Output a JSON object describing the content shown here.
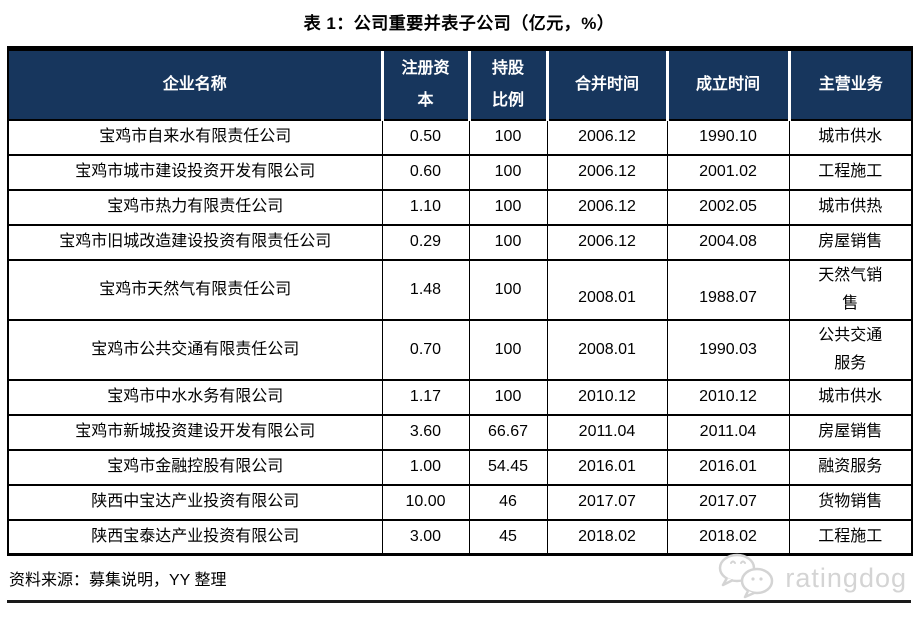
{
  "title": "表 1：公司重要并表子公司（亿元，%）",
  "table": {
    "columns": [
      "企业名称",
      "注册资\n本",
      "持股\n比例",
      "合并时间",
      "成立时间",
      "主营业务"
    ],
    "rows": [
      [
        "宝鸡市自来水有限责任公司",
        "0.50",
        "100",
        "2006.12",
        "1990.10",
        "城市供水"
      ],
      [
        "宝鸡市城市建设投资开发有限公司",
        "0.60",
        "100",
        "2006.12",
        "2001.02",
        "工程施工"
      ],
      [
        "宝鸡市热力有限责任公司",
        "1.10",
        "100",
        "2006.12",
        "2002.05",
        "城市供热"
      ],
      [
        "宝鸡市旧城改造建设投资有限责任公司",
        "0.29",
        "100",
        "2006.12",
        "2004.08",
        "房屋销售"
      ],
      [
        "宝鸡市天然气有限责任公司",
        "1.48",
        "100",
        "2008.01",
        "1988.07",
        "天然气销\n售"
      ],
      [
        "宝鸡市公共交通有限责任公司",
        "0.70",
        "100",
        "2008.01",
        "1990.03",
        "公共交通\n服务"
      ],
      [
        "宝鸡市中水水务有限公司",
        "1.17",
        "100",
        "2010.12",
        "2010.12",
        "城市供水"
      ],
      [
        "宝鸡市新城投资建设开发有限公司",
        "3.60",
        "66.67",
        "2011.04",
        "2011.04",
        "房屋销售"
      ],
      [
        "宝鸡市金融控股有限公司",
        "1.00",
        "54.45",
        "2016.01",
        "2016.01",
        "融资服务"
      ],
      [
        "陕西中宝达产业投资有限公司",
        "10.00",
        "46",
        "2017.07",
        "2017.07",
        "货物销售"
      ],
      [
        "陕西宝泰达产业投资有限公司",
        "3.00",
        "45",
        "2018.02",
        "2018.02",
        "工程施工"
      ]
    ]
  },
  "footer": {
    "source_text": "资料来源：募集说明，YY 整理"
  },
  "logo": {
    "text": "ratingdog",
    "icon": "wechat-bubbles-icon"
  },
  "colors": {
    "header_bg": "#17365d",
    "header_text": "#ffffff",
    "body_border": "#000000",
    "logo_gray": "#d4d4d4"
  }
}
